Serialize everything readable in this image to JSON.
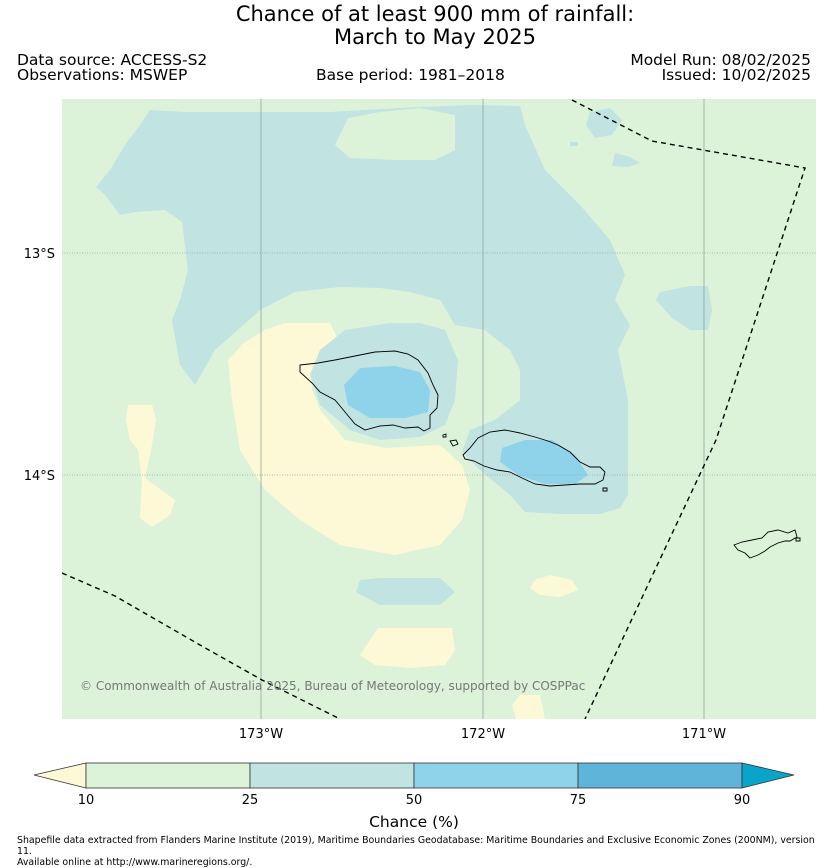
{
  "title": {
    "line1": "Chance of at least 900 mm of rainfall:",
    "line2": "March to May 2025"
  },
  "meta": {
    "data_source": "Data source: ACCESS-S2",
    "observations": "Observations: MSWEP",
    "base_period": "Base period: 1981–2018",
    "model_run": "Model Run: 08/02/2025",
    "issued": "Issued: 10/02/2025"
  },
  "map": {
    "lon_labels": [
      "173°W",
      "172°W",
      "171°W"
    ],
    "lat_labels": [
      "13°S",
      "14°S"
    ],
    "copyright": "© Commonwealth of Australia 2025, Bureau of Meteorology, supported by COSPPac",
    "colors": {
      "lt10": "#fdf9d6",
      "c10_25": "#dcf3da",
      "c25_50": "#c1e3e1",
      "c50_75": "#8fd3ea",
      "c75_90": "#5fb4d9",
      "gt90": "#0aa3c9",
      "coast": "#000000",
      "grid": "#8fa59f"
    },
    "icons": [
      "eez-boundary-dashed-line",
      "island-coastline"
    ]
  },
  "colorbar": {
    "ticks": [
      "10",
      "25",
      "50",
      "75",
      "90"
    ],
    "label": "Chance (%)"
  },
  "footer": {
    "line1": "Shapefile data extracted from Flanders Marine Institute (2019), Maritime Boundaries Geodatabase: Maritime Boundaries and Exclusive Economic Zones (200NM), version 11.",
    "line2": "Available online at http://www.marineregions.org/."
  }
}
